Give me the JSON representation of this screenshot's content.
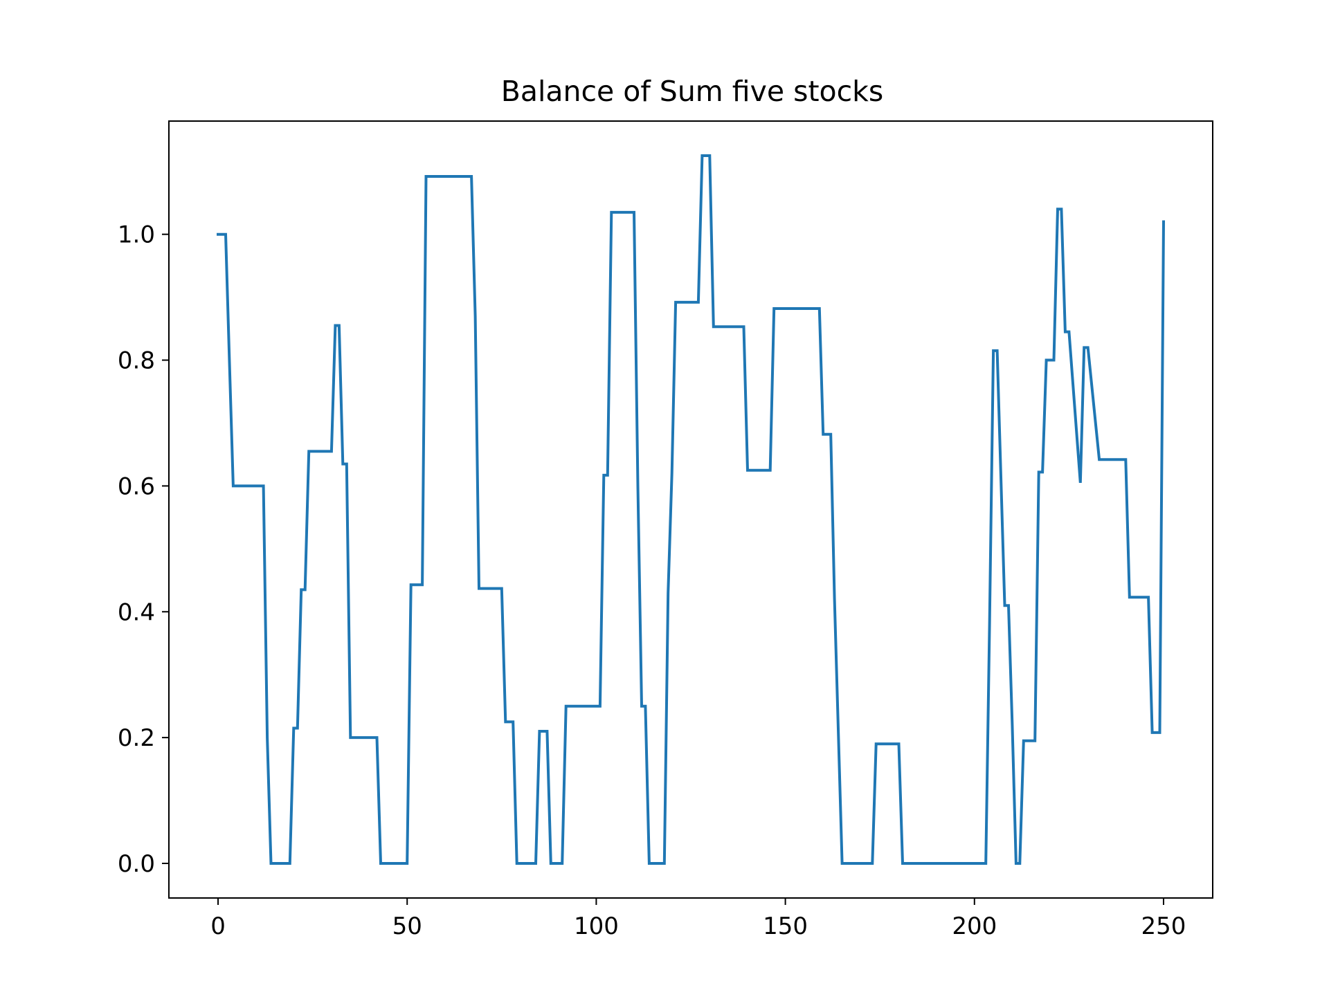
{
  "chart_data": {
    "type": "line",
    "title": "Balance of Sum five stocks",
    "xlabel": "",
    "ylabel": "",
    "xlim": [
      -13,
      263
    ],
    "ylim": [
      -0.055,
      1.18
    ],
    "xticks": [
      0,
      50,
      100,
      150,
      200,
      250
    ],
    "xtick_labels": [
      "0",
      "50",
      "100",
      "150",
      "200",
      "250"
    ],
    "yticks": [
      0.0,
      0.2,
      0.4,
      0.6,
      0.8,
      1.0
    ],
    "ytick_labels": [
      "0.0",
      "0.2",
      "0.4",
      "0.6",
      "0.8",
      "1.0"
    ],
    "grid": false,
    "legend": "none",
    "series": [
      {
        "color": "#1f77b4",
        "x": [
          0,
          2,
          3,
          4,
          12,
          13,
          14,
          19,
          20,
          21,
          22,
          23,
          24,
          30,
          31,
          32,
          33,
          34,
          35,
          36,
          42,
          43,
          50,
          51,
          54,
          55,
          67,
          68,
          69,
          75,
          76,
          78,
          79,
          84,
          85,
          87,
          88,
          91,
          92,
          101,
          102,
          103,
          104,
          110,
          111,
          112,
          113,
          114,
          115,
          118,
          119,
          120,
          121,
          122,
          127,
          128,
          130,
          131,
          139,
          140,
          146,
          147,
          159,
          160,
          162,
          163,
          164,
          165,
          166,
          173,
          174,
          180,
          181,
          202,
          203,
          204,
          205,
          206,
          208,
          209,
          210,
          211,
          212,
          213,
          214,
          216,
          217,
          218,
          219,
          221,
          222,
          223,
          224,
          225,
          228,
          229,
          230,
          233,
          234,
          240,
          241,
          246,
          247,
          249,
          250
        ],
        "y": [
          1.0,
          1.0,
          0.8,
          0.6,
          0.6,
          0.2,
          0.0,
          0.0,
          0.215,
          0.215,
          0.435,
          0.435,
          0.655,
          0.655,
          0.855,
          0.855,
          0.635,
          0.635,
          0.2,
          0.2,
          0.2,
          0.0,
          0.0,
          0.443,
          0.443,
          1.092,
          1.092,
          0.87,
          0.437,
          0.437,
          0.225,
          0.225,
          0.0,
          0.0,
          0.21,
          0.21,
          0.0,
          0.0,
          0.25,
          0.25,
          0.617,
          0.617,
          1.035,
          1.035,
          0.6,
          0.25,
          0.25,
          0.0,
          0.0,
          0.0,
          0.43,
          0.62,
          0.892,
          0.892,
          0.892,
          1.125,
          1.125,
          0.853,
          0.853,
          0.625,
          0.625,
          0.882,
          0.882,
          0.682,
          0.682,
          0.42,
          0.21,
          0.0,
          0.0,
          0.0,
          0.19,
          0.19,
          0.0,
          0.0,
          0.0,
          0.38,
          0.815,
          0.815,
          0.41,
          0.41,
          0.22,
          0.0,
          0.0,
          0.195,
          0.195,
          0.195,
          0.622,
          0.622,
          0.8,
          0.8,
          1.04,
          1.04,
          0.845,
          0.845,
          0.605,
          0.82,
          0.82,
          0.642,
          0.642,
          0.642,
          0.423,
          0.423,
          0.208,
          0.208,
          1.02
        ]
      }
    ]
  }
}
